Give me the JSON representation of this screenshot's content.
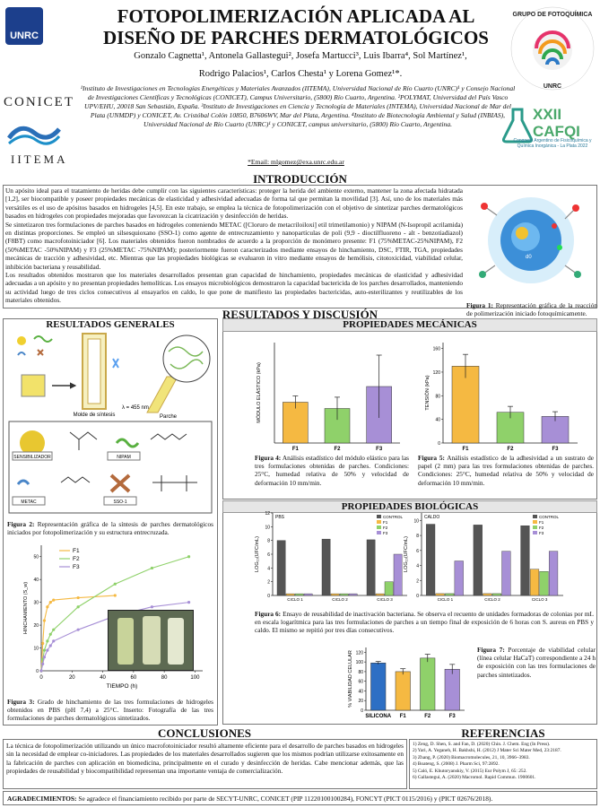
{
  "header": {
    "logo_unrc": "UNRC",
    "conicet": "CONICET",
    "iitema": "IITEMA",
    "title": "FOTOPOLIMERIZACIÓN APLICADA AL DISEÑO DE PARCHES DERMATOLÓGICOS",
    "authors_line1": "Gonzalo Cagnetta¹, Antonela Gallastegui², Josefa Martucci³, Luis Ibarra⁴, Sol Martínez¹,",
    "authors_line2": "Rodrigo Palacios¹, Carlos Chesta¹ y Lorena Gomez¹*.",
    "affiliations": "¹Instituto de Investigaciones en Tecnologías Energéticas y Materiales Avanzados (IITEMA), Universidad Nacional de Río Cuarto (UNRC)¹ y Consejo Nacional de Investigaciones Científicas y Tecnológicas (CONICET), Campus Universitario, (5800) Río Cuarto, Argentina. ²POLYMAT, Universidad del País Vasco UPV/EHU, 20018 San Sebastián, España. ³Instituto de Investigaciones en Ciencia y Tecnología de Materiales (INTEMA), Universidad Nacional de Mar del Plata (UNMDP) y CONICET, Av. Cristóbal Colón 10850, B7606WV, Mar del Plata, Argentina. ⁴Instituto de Biotecnología Ambiental y Salud (INBIAS), Universidad Nacional de Río Cuarto (UNRC)¹ y CONICET, campus universitario, (5800) Río Cuarto, Argentina.",
    "email": "*Email: mlgomez@exa.unrc.edu.ar",
    "logo_gq_text": "GRUPO DE FOTOQUÍMICA Y MATERIALES · UNRC",
    "cafqi_big": "XXII CAFQI",
    "cafqi_small": "Congreso Argentino de Fisicoquímica y Química Inorgánica - La Plata 2022"
  },
  "intro": {
    "heading": "INTRODUCCIÓN",
    "p1": "Un apósito ideal para el tratamiento de heridas debe cumplir con las siguientes características: proteger la herida del ambiente externo, mantener la zona afectada hidratada [1,2], ser biocompatible y poseer propiedades mecánicas de elasticidad y adhesividad adecuadas de forma tal que permitan la movilidad [3]. Así, uno de los materiales más versátiles es el uso de apósitos basados en hidrogeles [4,5]. En este trabajo, se emplea la técnica de fotopolimerización con el objetivo de sintetizar parches dermatológicos basados en hidrogeles con propiedades mejoradas que favorezcan la cicatrización y desinfección de heridas.",
    "p2": "Se sintetizaron tres formulaciones de parches basados en hidrogeles conteniendo METAC ([Cloruro de metacriloiloxi] etil trimetilamonio) y NIPAM (N-Isopropil acrilamida) en distintas proporciones. Se empleó un silsesquioxano (SSO-1) como agente de entrecruzamiento y nanopartículas de poli (9,9 - dioctilfluoreno - alt - benzotiadiazol) (F8BT) como macrofotoiniciador [6]. Los materiales obtenidos fueron nombrados de acuerdo a la proporción de monómero presente: F1 (75%METAC-25%NIPAM), F2 (50%METAC -50%NIPAM) y F3 (25%METAC -75%NIPAM); posteriormente fueron caracterizados mediante ensayos de hinchamiento, DSC, FTIR, TGA, propiedades mecánicas de tracción y adhesividad, etc. Mientras que las propiedades biológicas se evaluaron in vitro mediante ensayos de hemólisis, citotoxicidad, viabilidad celular, inhibición bacteriana y reusabilidad.",
    "p3": "Los resultados obtenidos mostraron que los materiales desarrollados presentan gran capacidad de hinchamiento, propiedades mecánicas de elasticidad y adhesividad adecuadas a un apósito y no presentan propiedades hemolíticas. Los ensayos microbiológicos demostraron la capacidad bactericida de los parches desarrollados, manteniendo su actividad luego de tres ciclos consecutivos al ensayarlos en caldo, lo que pone de manifiesto las propiedades bactericidas, auto-esterilizantes y reutilizables de los materiales obtenidos.",
    "fig1_label": "Figura 1:",
    "fig1_text": "Representación gráfica de la reacción de polimerización iniciado fotoquímicamente.",
    "fig1_sublabel": "d0"
  },
  "results": {
    "heading": "RESULTADOS Y DISCUSIÓN",
    "general_heading": "RESULTADOS GENERALES",
    "mech_heading": "PROPIEDADES MECÁNICAS",
    "bio_heading": "PROPIEDADES BIOLÓGICAS",
    "synth_mold_label": "Molde de síntesis",
    "synth_lambda": "λ = 455 nm",
    "synth_patch_label": "Parche",
    "comp_sens": "SENSIBILIZADOR",
    "comp_nipam": "NIPAM",
    "comp_metac": "METAC",
    "comp_sso": "SSO-1",
    "fig2_label": "Figura 2:",
    "fig2_text": "Representación gráfica de la síntesis de parches dermatológicos iniciados por fotopolimerización y su estructura entrecruzada.",
    "fig3_label": "Figura 3:",
    "fig3_text": "Grado de hinchamiento de las tres formulaciones de hidrogeles obtenidos en PBS (pH 7,4) a 25°C. Inserto: Fotografía de las tres formulaciones de parches dermatológicos sintetizados.",
    "fig4_label": "Figura 4:",
    "fig4_text": "Análisis estadístico del módulo elástico para las tres formulaciones obtenidas de parches. Condiciones: 25°C, humedad relativa de 50% y velocidad de deformación 10 mm/min.",
    "fig5_label": "Figura 5:",
    "fig5_text": "Análisis estadístico de la adhesividad a un sustrato de papel (2 mm) para las tres formulaciones obtenidas de parches. Condiciones: 25°C, humedad relativa de 50% y velocidad de deformación 10 mm/min.",
    "fig6_label": "Figura 6:",
    "fig6_text": "Ensayo de reusabilidad de inactivación bacteriana. Se observa el recuento de unidades formadoras de colonias por mL en escala logarítmica para las tres formulaciones de parches a un tiempo final de exposición de 6 horas con S. aureus en PBS y caldo. El mismo se repitió por tres días consecutivos.",
    "fig7_label": "Figura 7:",
    "fig7_text": "Porcentaje de viabilidad celular (línea celular HaCaT) correspondiente a 24 h de exposición con las tres formulaciones de parches sintetizados."
  },
  "conclusions": {
    "heading": "CONCLUSIONES",
    "text": "La técnica de fotopolimerización utilizando un único macrofotoiniciador resultó altamente eficiente para el desarrollo de parches basados en hidrogeles sin la necesidad de emplear co-iniciadores. Las propiedades de los materiales desarrollados sugieren que los mismos podrían utilizarse exitosamente en la fabricación de parches con aplicación en biomedicina, principalmente en el curado y desinfección de heridas. Cabe mencionar además, que las propiedades de reusabilidad y biocompatibilidad representan una importante ventaja de comercialización."
  },
  "references": {
    "heading": "REFERENCIAS",
    "items": [
      "1) Zeng, D. Shen, S. and Fan, D. (2020) Chin. J. Chem. Eng (In Press).",
      "2) Yari, A. Yeganeh, H. Bakhshi, H. (2012) J Mater Sci Mater Med, 23:2187.",
      "3) Zhang, P. (2020) Biomacromolecules, 21, 10, 3966–3983.",
      "4) Boateng, S. (2008) J. Pharm Sci, 97:2892.",
      "5) Caló, E. Khutoryanskiy, V. (2015) Eur Polym J, 65: 252.",
      "6) Gallastegui, A. (2020) Macromol. Rapid Commun. 1900601."
    ]
  },
  "acknowledgements": {
    "label": "AGRADECIMIENTOS:",
    "text": "Se agradece el financiamiento recibido por parte de SECYT-UNRC, CONICET (PIP 11220100100284), FONCYT (PICT 0115/2016) y (PICT 02676/2018)."
  },
  "colors": {
    "F1": "#f5b942",
    "F2": "#8fd16a",
    "F3": "#a78fd6",
    "ctrl": "#555555"
  },
  "chart_data": [
    {
      "id": "fig3",
      "type": "line",
      "xlabel": "TIEMPO (h)",
      "ylabel": "HINCHAMIENTO (S_w)",
      "xticks": [
        0,
        20,
        40,
        60,
        80,
        100
      ],
      "yticks": [
        0,
        10,
        20,
        30,
        40,
        50
      ],
      "xlim": [
        0,
        105
      ],
      "ylim": [
        0,
        55
      ],
      "series": [
        {
          "name": "F1",
          "x": [
            0,
            1,
            2,
            4,
            6,
            8,
            24,
            48
          ],
          "y": [
            0,
            12,
            22,
            28,
            30,
            31,
            32,
            33
          ]
        },
        {
          "name": "F2",
          "x": [
            0,
            1,
            2,
            4,
            6,
            8,
            24,
            48,
            72,
            96
          ],
          "y": [
            0,
            5,
            9,
            13,
            16,
            18,
            28,
            38,
            45,
            50
          ]
        },
        {
          "name": "F3",
          "x": [
            0,
            1,
            2,
            4,
            6,
            8,
            24,
            48,
            72,
            96
          ],
          "y": [
            0,
            3,
            6,
            9,
            11,
            13,
            18,
            24,
            28,
            30
          ]
        }
      ]
    },
    {
      "id": "fig4",
      "type": "bar",
      "ylabel": "MÓDULO ELÁSTICO (kPa)",
      "categories": [
        "F1",
        "F2",
        "F3"
      ],
      "values": [
        0.65,
        0.55,
        0.9
      ],
      "errors": [
        0.1,
        0.18,
        0.5
      ],
      "ylim": [
        0,
        1.6
      ]
    },
    {
      "id": "fig5",
      "type": "bar",
      "ylabel": "TENSIÓN (kPa)",
      "categories": [
        "F1",
        "F2",
        "F3"
      ],
      "values": [
        130,
        52,
        45
      ],
      "errors": [
        20,
        10,
        8
      ],
      "yticks": [
        0,
        40,
        80,
        120,
        160
      ],
      "ylim": [
        0,
        170
      ]
    },
    {
      "id": "fig6a",
      "type": "bar",
      "panel": "PBS",
      "ylabel": "LOG₁₀(UFC/mL)",
      "groups": [
        "CICLO 1",
        "CICLO 2",
        "CICLO 3"
      ],
      "series": [
        {
          "name": "CONTROL",
          "values": [
            8.0,
            8.2,
            8.1
          ]
        },
        {
          "name": "F1",
          "values": [
            0,
            0,
            0
          ]
        },
        {
          "name": "F2",
          "values": [
            0,
            0,
            2.0
          ]
        },
        {
          "name": "F3",
          "values": [
            0,
            0,
            6.0
          ]
        }
      ],
      "yticks": [
        0,
        2,
        4,
        6,
        8,
        10,
        12
      ],
      "ylim": [
        0,
        12
      ]
    },
    {
      "id": "fig6b",
      "type": "bar",
      "panel": "CALDO",
      "ylabel": "LOG₁₀(UFC/mL)",
      "groups": [
        "CICLO 1",
        "CICLO 2",
        "CICLO 3"
      ],
      "series": [
        {
          "name": "CONTROL",
          "values": [
            9.5,
            9.4,
            9.3
          ]
        },
        {
          "name": "F1",
          "values": [
            0,
            0,
            3.5
          ]
        },
        {
          "name": "F2",
          "values": [
            0,
            0,
            3.2
          ]
        },
        {
          "name": "F3",
          "values": [
            4.6,
            5.9,
            5.9
          ]
        }
      ],
      "yticks": [
        0,
        2,
        4,
        6,
        8,
        10
      ],
      "ylim": [
        0,
        11
      ]
    },
    {
      "id": "fig7",
      "type": "bar",
      "ylabel": "% VIABILIDAD CELULAR",
      "categories": [
        "SILICONA",
        "F1",
        "F2",
        "F3"
      ],
      "values": [
        98,
        80,
        108,
        85
      ],
      "errors": [
        3,
        6,
        8,
        10
      ],
      "yticks": [
        0,
        20,
        40,
        60,
        80,
        100,
        120
      ],
      "ylim": [
        0,
        130
      ]
    }
  ]
}
